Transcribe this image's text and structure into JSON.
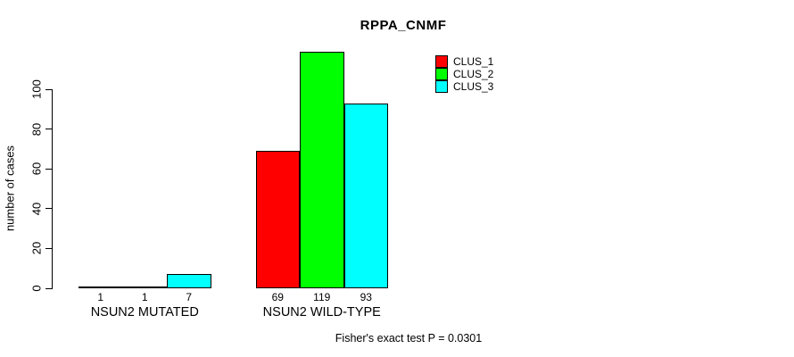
{
  "chart_data": {
    "type": "bar",
    "title": "RPPA_CNMF",
    "ylabel": "number of cases",
    "xlabel": "",
    "footnote": "Fisher's exact test P = 0.0301",
    "categories": [
      "NSUN2 MUTATED",
      "NSUN2 WILD-TYPE"
    ],
    "series": [
      {
        "name": "CLUS_1",
        "color": "#ff0000",
        "values": [
          1,
          69
        ]
      },
      {
        "name": "CLUS_2",
        "color": "#00ff00",
        "values": [
          1,
          119
        ]
      },
      {
        "name": "CLUS_3",
        "color": "#00ffff",
        "values": [
          7,
          93
        ]
      }
    ],
    "bar_value_labels": [
      [
        "1",
        "1",
        "7"
      ],
      [
        "69",
        "119",
        "93"
      ]
    ],
    "yticks": [
      0,
      20,
      40,
      60,
      80,
      100
    ],
    "ylim": [
      0,
      119
    ],
    "grid": false,
    "legend_position": "top-right",
    "text_color": "#000000",
    "background_color": "#ffffff",
    "bar_border_color": "#000000"
  }
}
